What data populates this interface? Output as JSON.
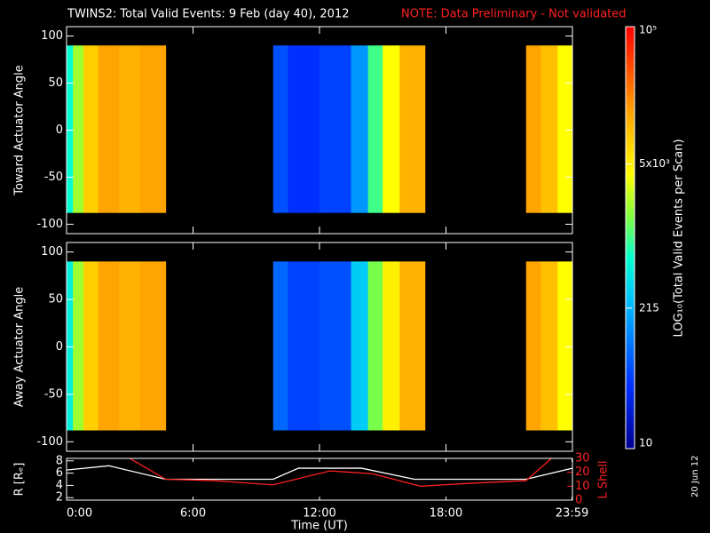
{
  "title": "TWINS2: Total Valid Events:  9 Feb (day  40), 2012",
  "note": "NOTE: Data Preliminary - Not validated",
  "date_stamp": "20 Jun 12",
  "colorbar": {
    "label": "LOG₁₀(Total Valid Events per Scan)",
    "log": true,
    "clim": [
      10,
      100000
    ],
    "ticks": [
      10,
      215,
      {
        "value": 5000,
        "label": "5x10³"
      },
      {
        "value": 100000,
        "label": "10⁵"
      }
    ]
  },
  "chart_data": [
    {
      "type": "heatmap",
      "ylabel": "Toward Actuator Angle",
      "ylim": [
        -110,
        110
      ],
      "yticks": [
        -100,
        -50,
        0,
        50,
        100
      ],
      "xlim": [
        0,
        24
      ],
      "xticks": [
        0,
        6,
        12,
        18,
        24
      ],
      "angle_range": [
        -88,
        90
      ],
      "x_edges": [
        0,
        0.3,
        0.8,
        1.5,
        2.5,
        3.5,
        4.7,
        9.8,
        10.5,
        12,
        13.5,
        14.3,
        15,
        15.8,
        17,
        21.8,
        22.5,
        23.3,
        24
      ],
      "values": [
        600,
        2000,
        8000,
        15000,
        12000,
        15000,
        null,
        60,
        40,
        50,
        150,
        1000,
        4000,
        12000,
        null,
        15000,
        10000,
        4000
      ]
    },
    {
      "type": "heatmap",
      "ylabel": "Away Actuator Angle",
      "ylim": [
        -110,
        110
      ],
      "yticks": [
        -100,
        -50,
        0,
        50,
        100
      ],
      "xlim": [
        0,
        24
      ],
      "xticks": [
        0,
        6,
        12,
        18,
        24
      ],
      "angle_range": [
        -88,
        90
      ],
      "x_edges": [
        0,
        0.3,
        0.8,
        1.5,
        2.5,
        3.5,
        4.7,
        9.8,
        10.5,
        12,
        13.5,
        14.3,
        15,
        15.8,
        17,
        21.8,
        22.5,
        23.3,
        24
      ],
      "values": [
        500,
        2000,
        8000,
        15000,
        12000,
        15000,
        null,
        80,
        50,
        60,
        300,
        1500,
        5000,
        12000,
        null,
        15000,
        10000,
        4000
      ]
    },
    {
      "type": "line",
      "ylabel": "R [Rₑ]",
      "y2label": "L Shell",
      "xlabel": "Time (UT)",
      "xlim": [
        0,
        24
      ],
      "xticks": [
        {
          "value": 0,
          "label": "0:00"
        },
        {
          "value": 6,
          "label": "6:00"
        },
        {
          "value": 12,
          "label": "12:00"
        },
        {
          "value": 18,
          "label": "18:00"
        },
        {
          "value": 23.98,
          "label": "23:59"
        }
      ],
      "ylim": [
        1.6,
        8.4
      ],
      "yticks": [
        2,
        4,
        6,
        8
      ],
      "y2lim": [
        0,
        30
      ],
      "y2ticks": [
        0,
        10,
        20,
        30
      ],
      "series": [
        {
          "color": "#ffffff",
          "x": [
            0,
            2,
            4.7,
            9.8,
            11,
            14,
            16.5,
            21.8,
            24
          ],
          "values": [
            6.5,
            7.2,
            5,
            5,
            6.8,
            6.8,
            5,
            5,
            6.8
          ]
        },
        {
          "color": "#ff2020",
          "axis": "y2",
          "x": [
            3,
            4.7,
            7,
            9.8,
            12.5,
            14.5,
            16.8,
            19,
            21.8,
            23
          ],
          "values": [
            30,
            15,
            14,
            11,
            21,
            19,
            10,
            12,
            14,
            30
          ]
        }
      ]
    }
  ]
}
